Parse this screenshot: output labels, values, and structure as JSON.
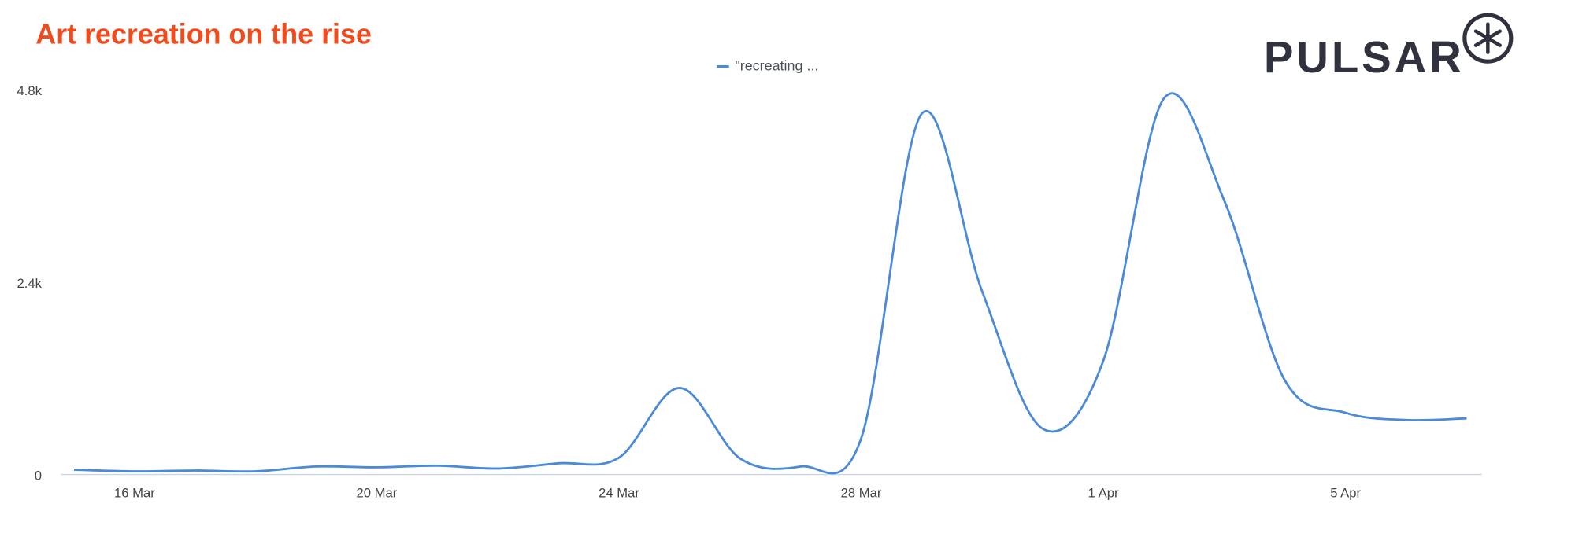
{
  "chart_data": {
    "type": "line",
    "title": "Art recreation on the rise",
    "logo": "PULSAR",
    "categories": [
      null,
      "16 Mar",
      null,
      null,
      null,
      "20 Mar",
      null,
      null,
      null,
      "24 Mar",
      null,
      null,
      null,
      "28 Mar",
      null,
      null,
      null,
      "1 Apr",
      null,
      null,
      null,
      "5 Apr",
      null,
      null
    ],
    "series": [
      {
        "name": "\"recreating ...",
        "color": "#4a8ad8",
        "values": [
          60,
          40,
          50,
          40,
          100,
          90,
          110,
          75,
          140,
          210,
          1080,
          200,
          100,
          450,
          4500,
          2280,
          570,
          1420,
          4690,
          3410,
          1170,
          770,
          680,
          700
        ]
      }
    ],
    "ylim": [
      0,
      4800
    ],
    "yticks": [
      0,
      {
        "value": 2400,
        "label": "2.4k"
      },
      {
        "value": 4800,
        "label": "4.8k"
      }
    ],
    "grid": false,
    "legend": "top"
  }
}
